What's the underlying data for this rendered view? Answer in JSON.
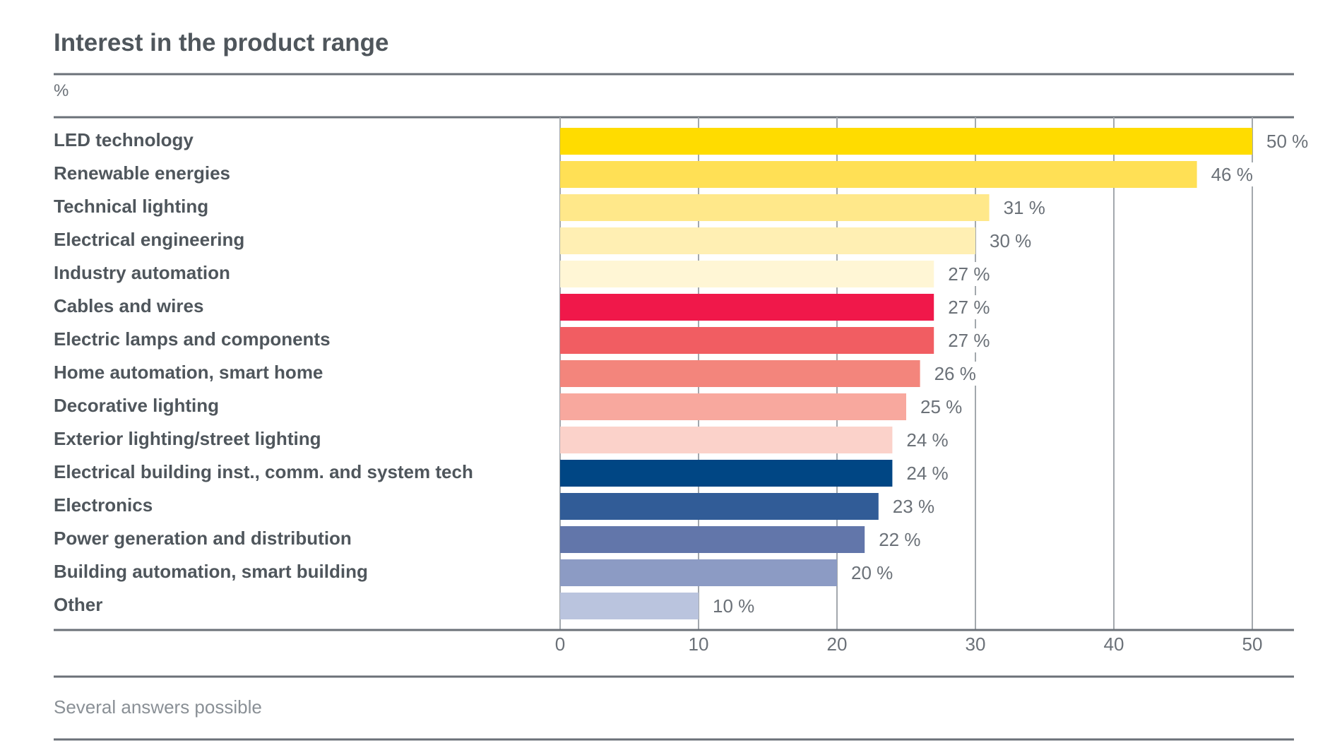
{
  "chart_data": {
    "type": "bar",
    "orientation": "horizontal",
    "title": "Interest in the product range",
    "unit": "%",
    "categories": [
      "LED technology",
      "Renewable energies",
      "Technical lighting",
      "Electrical engineering",
      "Industry automation",
      "Cables and wires",
      "Electric lamps and components",
      "Home automation, smart home",
      "Decorative lighting",
      "Exterior lighting/street lighting",
      "Electrical building inst., comm. and system tech",
      "Electronics",
      "Power generation and distribution",
      "Building automation, smart building",
      "Other"
    ],
    "values": [
      50,
      46,
      31,
      30,
      27,
      27,
      27,
      26,
      25,
      24,
      24,
      23,
      22,
      20,
      10
    ],
    "value_labels": [
      "50 %",
      "46 %",
      "31 %",
      "30 %",
      "27 %",
      "27 %",
      "27 %",
      "26 %",
      "25 %",
      "24 %",
      "24 %",
      "23 %",
      "22 %",
      "20 %",
      "10 %"
    ],
    "colors": [
      "#ffdc00",
      "#ffe055",
      "#ffe88a",
      "#ffefb3",
      "#fff6d5",
      "#f0184a",
      "#f15d62",
      "#f3857c",
      "#f8a89e",
      "#fbd2ca",
      "#004684",
      "#315c97",
      "#6276aa",
      "#8c9bc4",
      "#bac4de"
    ],
    "xlim": [
      0,
      50
    ],
    "xticks": [
      "0",
      "10",
      "20",
      "30",
      "40",
      "50"
    ],
    "grid": true,
    "footnote": "Several answers possible"
  }
}
